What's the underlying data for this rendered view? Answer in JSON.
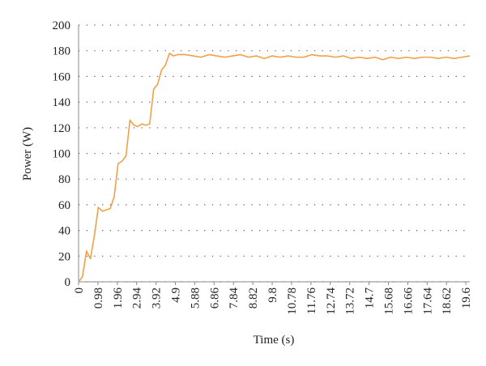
{
  "chart_data": {
    "type": "line",
    "x_label": "Time (s)",
    "y_label": "Power (W)",
    "x": [
      0,
      0.2,
      0.4,
      0.6,
      0.8,
      1,
      1.2,
      1.4,
      1.6,
      1.8,
      2,
      2.2,
      2.4,
      2.6,
      2.8,
      3,
      3.2,
      3.4,
      3.6,
      3.8,
      4,
      4.2,
      4.4,
      4.6,
      4.8,
      5,
      5.4,
      5.8,
      6.2,
      6.6,
      7,
      7.4,
      7.8,
      8.2,
      8.6,
      9,
      9.4,
      9.8,
      10.2,
      10.6,
      11,
      11.4,
      11.8,
      12.2,
      12.6,
      13,
      13.4,
      13.8,
      14.2,
      14.6,
      15,
      15.4,
      15.8,
      16.2,
      16.6,
      17,
      17.4,
      17.8,
      18.2,
      18.6,
      19,
      19.4,
      19.8
    ],
    "series": [
      {
        "color": "#f0a048",
        "values": [
          0,
          4,
          24,
          18,
          36,
          58,
          55,
          56,
          57,
          66,
          92,
          94,
          98,
          126,
          122,
          121,
          123,
          122,
          123,
          150,
          154,
          165,
          169,
          178,
          176,
          177,
          177,
          176,
          175,
          177,
          176,
          175,
          176,
          177,
          175,
          176,
          174,
          176,
          175,
          176,
          175,
          175,
          177,
          176,
          176,
          175,
          176,
          174,
          175,
          174,
          175,
          173,
          175,
          174,
          175,
          174,
          175,
          175,
          174,
          175,
          174,
          175,
          176
        ]
      }
    ],
    "xlim": [
      0,
      19.8
    ],
    "ylim": [
      0,
      200
    ],
    "xticks": [
      0,
      0.98,
      1.96,
      2.94,
      3.92,
      4.9,
      5.88,
      6.86,
      7.84,
      8.82,
      9.8,
      10.78,
      11.76,
      12.74,
      13.72,
      14.7,
      15.68,
      16.66,
      17.64,
      18.62,
      19.6
    ],
    "yticks": [
      0,
      20,
      40,
      60,
      80,
      100,
      120,
      140,
      160,
      180,
      200
    ],
    "grid": true
  }
}
